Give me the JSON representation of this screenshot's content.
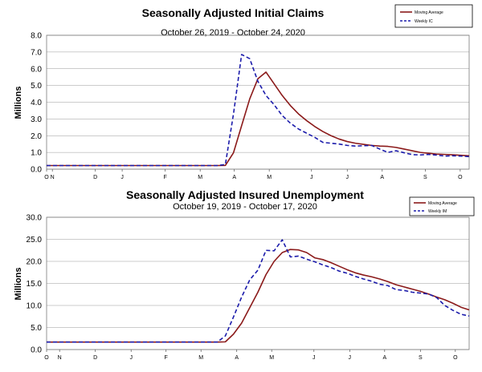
{
  "chart_data": [
    {
      "type": "line",
      "title": "Seasonally Adjusted Initial Claims",
      "subtitle": "October 26, 2019 - October 24, 2020",
      "ylabel": "Millions",
      "xlabel": "",
      "ylim": [
        0,
        8
      ],
      "yticks": [
        "0.0",
        "1.0",
        "2.0",
        "3.0",
        "4.0",
        "5.0",
        "6.0",
        "7.0",
        "8.0"
      ],
      "yticks_values": [
        0,
        1,
        2,
        3,
        4,
        5,
        6,
        7,
        8
      ],
      "x_tick_labels": [
        "O",
        "N",
        "D",
        "J",
        "F",
        "M",
        "A",
        "M",
        "J",
        "J",
        "A",
        "S",
        "O"
      ],
      "x_tick_positions": [
        0,
        0.71,
        6.0,
        9.3,
        14.6,
        18.9,
        23.1,
        27.4,
        32.6,
        37.0,
        41.3,
        46.6,
        50.9
      ],
      "grid": true,
      "legend_position": "top-right",
      "x_count": 53,
      "series": [
        {
          "name": "Moving Average",
          "color": "#8b1a1a",
          "dash": false,
          "values": [
            0.215,
            0.215,
            0.215,
            0.215,
            0.215,
            0.215,
            0.215,
            0.215,
            0.215,
            0.215,
            0.215,
            0.215,
            0.215,
            0.215,
            0.215,
            0.215,
            0.215,
            0.215,
            0.215,
            0.215,
            0.215,
            0.215,
            0.225,
            0.98,
            2.6,
            4.2,
            5.4,
            5.8,
            5.1,
            4.4,
            3.8,
            3.3,
            2.9,
            2.55,
            2.25,
            2.0,
            1.8,
            1.65,
            1.55,
            1.48,
            1.42,
            1.38,
            1.36,
            1.3,
            1.2,
            1.1,
            1.0,
            0.95,
            0.9,
            0.88,
            0.86,
            0.83,
            0.8
          ]
        },
        {
          "name": "Weekly IC",
          "color": "#1c1cab",
          "dash": true,
          "values": [
            0.215,
            0.215,
            0.215,
            0.215,
            0.215,
            0.215,
            0.215,
            0.215,
            0.215,
            0.215,
            0.215,
            0.215,
            0.215,
            0.215,
            0.215,
            0.215,
            0.215,
            0.215,
            0.215,
            0.215,
            0.215,
            0.215,
            0.28,
            3.3,
            6.85,
            6.6,
            5.25,
            4.4,
            3.85,
            3.2,
            2.75,
            2.4,
            2.15,
            1.9,
            1.6,
            1.55,
            1.5,
            1.42,
            1.38,
            1.4,
            1.42,
            1.2,
            1.0,
            1.1,
            0.98,
            0.87,
            0.85,
            0.88,
            0.84,
            0.78,
            0.8,
            0.78,
            0.75
          ]
        }
      ]
    },
    {
      "type": "line",
      "title": "Seasonally Adjusted Insured Unemployment",
      "subtitle": "October 19, 2019 - October 17, 2020",
      "ylabel": "Millions",
      "xlabel": "",
      "ylim": [
        0,
        30
      ],
      "yticks": [
        "0.0",
        "5.0",
        "10.0",
        "15.0",
        "20.0",
        "25.0",
        "30.0"
      ],
      "yticks_values": [
        0,
        5,
        10,
        15,
        20,
        25,
        30
      ],
      "x_tick_labels": [
        "O",
        "N",
        "D",
        "J",
        "F",
        "M",
        "A",
        "M",
        "J",
        "J",
        "A",
        "S",
        "O"
      ],
      "x_tick_positions": [
        0,
        1.6,
        6.0,
        10.4,
        14.7,
        19.0,
        23.4,
        27.7,
        32.9,
        37.3,
        41.6,
        46.0,
        50.3
      ],
      "grid": true,
      "legend_position": "top-right",
      "x_count": 53,
      "series": [
        {
          "name": "Moving Average",
          "color": "#8b1a1a",
          "dash": false,
          "values": [
            1.7,
            1.7,
            1.7,
            1.7,
            1.7,
            1.7,
            1.7,
            1.7,
            1.7,
            1.7,
            1.7,
            1.7,
            1.7,
            1.7,
            1.7,
            1.7,
            1.7,
            1.7,
            1.7,
            1.7,
            1.7,
            1.7,
            1.75,
            3.5,
            6.0,
            9.5,
            13.0,
            17.0,
            20.0,
            22.0,
            22.7,
            22.6,
            22.0,
            20.8,
            20.4,
            19.7,
            18.9,
            18.1,
            17.4,
            16.9,
            16.5,
            16.0,
            15.4,
            14.7,
            14.2,
            13.7,
            13.2,
            12.6,
            11.9,
            11.3,
            10.5,
            9.6,
            9.0
          ]
        },
        {
          "name": "Weekly IM",
          "color": "#1c1cab",
          "dash": true,
          "values": [
            1.7,
            1.7,
            1.7,
            1.7,
            1.7,
            1.7,
            1.7,
            1.7,
            1.7,
            1.7,
            1.7,
            1.7,
            1.7,
            1.7,
            1.7,
            1.7,
            1.7,
            1.7,
            1.7,
            1.7,
            1.7,
            1.7,
            3.1,
            7.4,
            11.9,
            15.8,
            18.0,
            22.5,
            22.4,
            24.9,
            21.0,
            21.2,
            20.5,
            19.9,
            19.2,
            18.6,
            17.8,
            17.3,
            16.6,
            16.0,
            15.5,
            14.8,
            14.5,
            13.6,
            13.4,
            13.0,
            12.8,
            12.6,
            11.8,
            10.0,
            8.9,
            8.0,
            7.6
          ]
        }
      ]
    }
  ]
}
